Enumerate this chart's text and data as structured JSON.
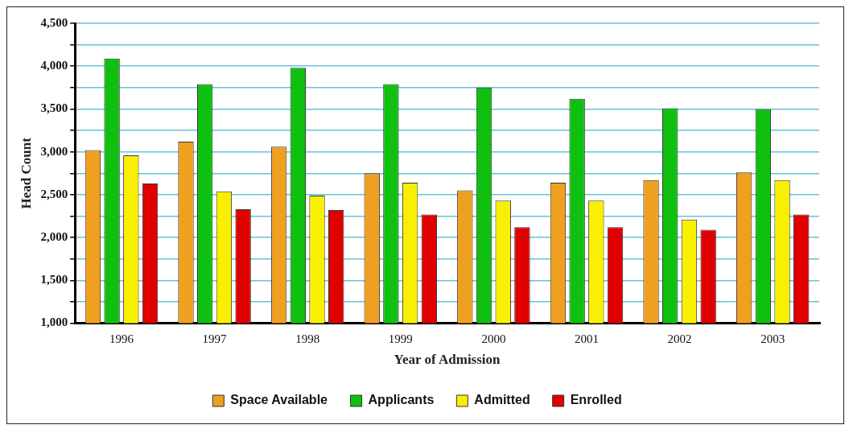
{
  "chart_data": {
    "type": "bar",
    "xlabel": "Year of Admission",
    "ylabel": "Head Count",
    "categories": [
      "1996",
      "1997",
      "1998",
      "1999",
      "2000",
      "2001",
      "2002",
      "2003"
    ],
    "series": [
      {
        "name": "Space Available",
        "color": "#f0a020",
        "values": [
          3020,
          3120,
          3060,
          2750,
          2550,
          2640,
          2670,
          2760
        ]
      },
      {
        "name": "Applicants",
        "color": "#10c010",
        "values": [
          4090,
          3790,
          3980,
          3790,
          3750,
          3620,
          3510,
          3500
        ]
      },
      {
        "name": "Admitted",
        "color": "#f8f000",
        "values": [
          2960,
          2540,
          2490,
          2640,
          2430,
          2430,
          2210,
          2670
        ]
      },
      {
        "name": "Enrolled",
        "color": "#e00000",
        "values": [
          2630,
          2330,
          2320,
          2270,
          2120,
          2120,
          2090,
          2270
        ]
      }
    ],
    "ylim": [
      1000,
      4500
    ],
    "yticks": [
      "1,000",
      {
        "value": 1250,
        "label": null
      },
      {
        "value": 1500,
        "label": "1,500"
      },
      {
        "value": 1750,
        "label": null
      },
      {
        "value": 2000,
        "label": "2,000"
      },
      {
        "value": 2250,
        "label": null
      },
      {
        "value": 2500,
        "label": "2,500"
      },
      {
        "value": 2750,
        "label": null
      },
      {
        "value": 3000,
        "label": "3,000"
      },
      {
        "value": 3250,
        "label": null
      },
      {
        "value": 3500,
        "label": "3,500"
      },
      {
        "value": 3750,
        "label": null
      },
      {
        "value": 4000,
        "label": "4,000"
      },
      {
        "value": 4250,
        "label": null
      },
      {
        "value": 4500,
        "label": "4,500"
      }
    ],
    "grid": "y",
    "legend": "bottom"
  }
}
